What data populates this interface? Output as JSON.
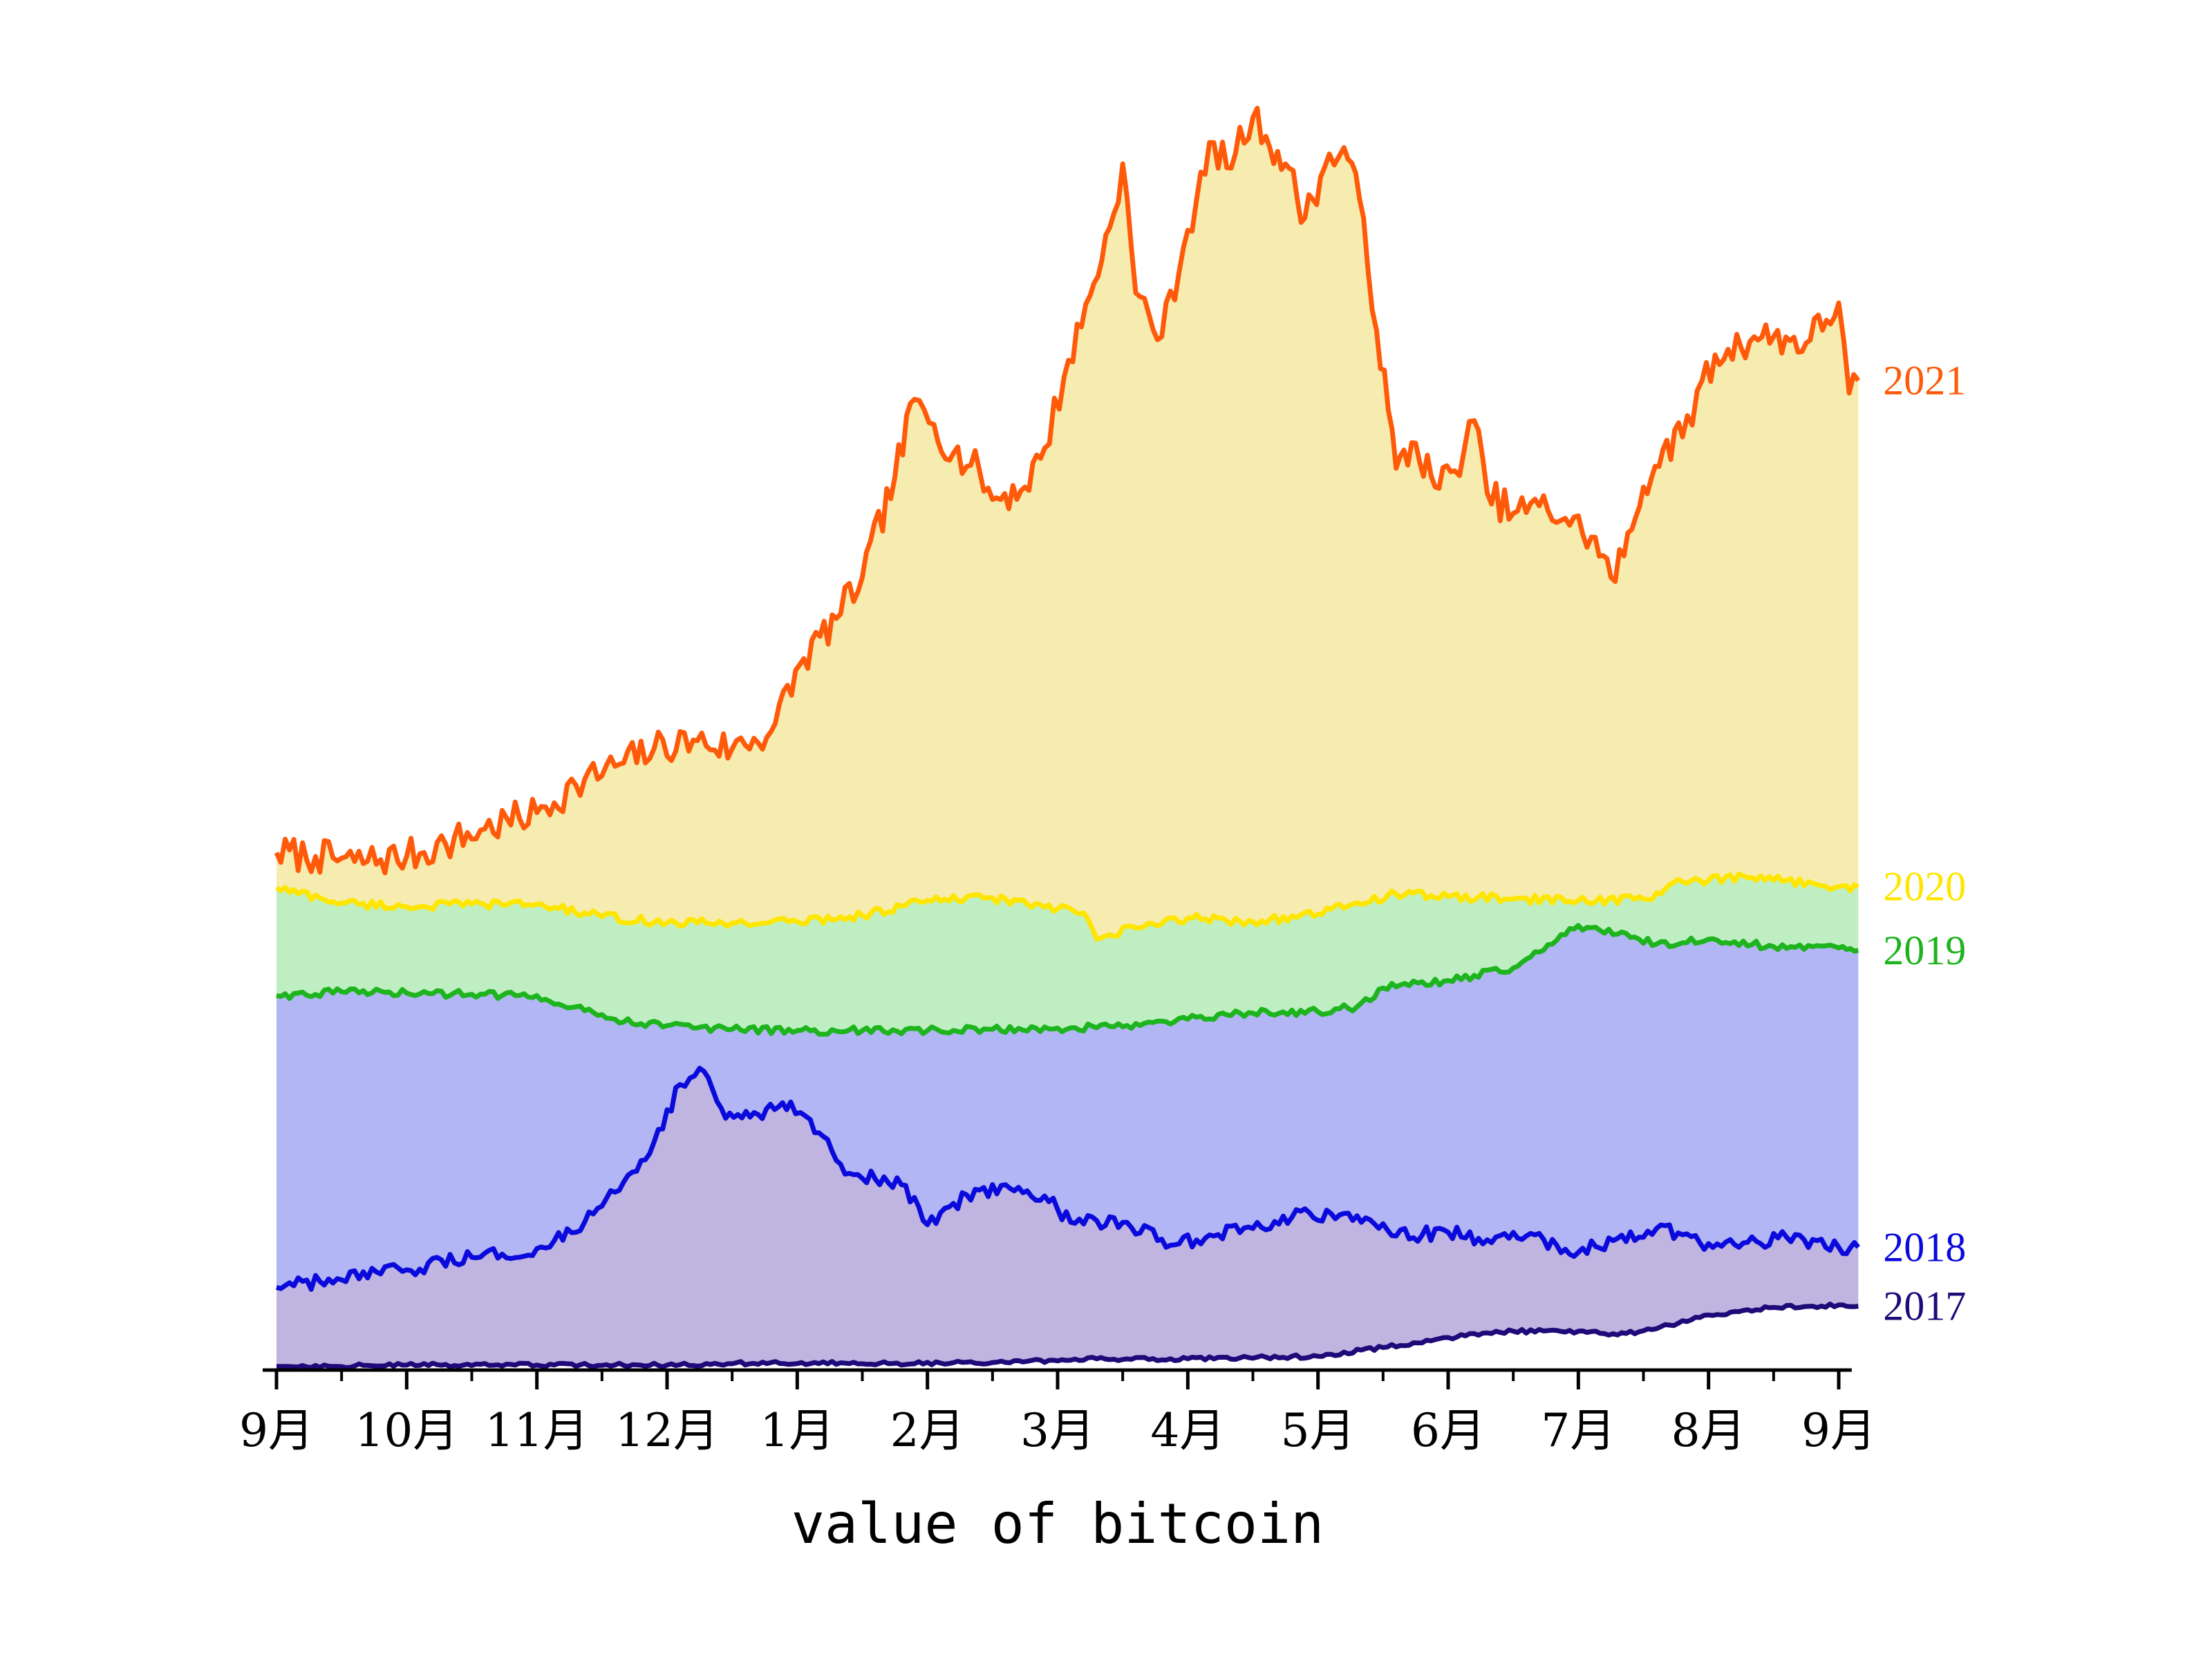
{
  "chart_data": {
    "type": "area",
    "title": "",
    "xlabel": "value of bitcoin",
    "ylabel": "",
    "x_tick_labels": [
      "9月",
      "10月",
      "11月",
      "12月",
      "1月",
      "2月",
      "3月",
      "4月",
      "5月",
      "6月",
      "7月",
      "8月",
      "9月"
    ],
    "x_unit": "month index (0 = 9月 start, 12 = following 9月)",
    "xlim": [
      0,
      12.1
    ],
    "y_scale": "relative (no y axis printed)",
    "ylim": [
      0,
      1
    ],
    "grid": false,
    "legend": "none (series labels at right end of each line)",
    "series": [
      {
        "name": "2021",
        "color": "#ff5a0a",
        "fill": "#f7ecb0",
        "points": [
          [
            0,
            0.413
          ],
          [
            0.3,
            0.41
          ],
          [
            0.6,
            0.406
          ],
          [
            1.0,
            0.41
          ],
          [
            1.3,
            0.42
          ],
          [
            1.6,
            0.432
          ],
          [
            2.0,
            0.445
          ],
          [
            2.3,
            0.467
          ],
          [
            2.6,
            0.482
          ],
          [
            2.9,
            0.496
          ],
          [
            3.2,
            0.503
          ],
          [
            3.5,
            0.496
          ],
          [
            3.8,
            0.51
          ],
          [
            4.05,
            0.568
          ],
          [
            4.3,
            0.6
          ],
          [
            4.5,
            0.633
          ],
          [
            4.75,
            0.713
          ],
          [
            4.9,
            0.775
          ],
          [
            5.05,
            0.755
          ],
          [
            5.2,
            0.732
          ],
          [
            5.4,
            0.718
          ],
          [
            5.5,
            0.695
          ],
          [
            5.75,
            0.705
          ],
          [
            5.9,
            0.736
          ],
          [
            6.05,
            0.793
          ],
          [
            6.25,
            0.858
          ],
          [
            6.4,
            0.912
          ],
          [
            6.5,
            0.963
          ],
          [
            6.6,
            0.86
          ],
          [
            6.8,
            0.825
          ],
          [
            7.0,
            0.91
          ],
          [
            7.2,
            0.98
          ],
          [
            7.3,
            0.96
          ],
          [
            7.5,
            1.0
          ],
          [
            7.6,
            0.985
          ],
          [
            7.75,
            0.963
          ],
          [
            7.9,
            0.92
          ],
          [
            8.05,
            0.96
          ],
          [
            8.2,
            0.976
          ],
          [
            8.35,
            0.92
          ],
          [
            8.45,
            0.83
          ],
          [
            8.6,
            0.72
          ],
          [
            8.75,
            0.74
          ],
          [
            8.9,
            0.705
          ],
          [
            9.05,
            0.718
          ],
          [
            9.2,
            0.758
          ],
          [
            9.3,
            0.7
          ],
          [
            9.5,
            0.684
          ],
          [
            9.7,
            0.69
          ],
          [
            9.9,
            0.68
          ],
          [
            10.1,
            0.665
          ],
          [
            10.25,
            0.633
          ],
          [
            10.35,
            0.65
          ],
          [
            10.5,
            0.705
          ],
          [
            10.65,
            0.735
          ],
          [
            10.8,
            0.745
          ],
          [
            10.95,
            0.79
          ],
          [
            11.15,
            0.815
          ],
          [
            11.35,
            0.825
          ],
          [
            11.5,
            0.825
          ],
          [
            11.75,
            0.82
          ],
          [
            12.0,
            0.852
          ],
          [
            12.08,
            0.78
          ],
          [
            12.15,
            0.79
          ]
        ]
      },
      {
        "name": "2020",
        "color": "#ffe600",
        "fill": "#bfeec3",
        "points": [
          [
            0,
            0.385
          ],
          [
            0.5,
            0.373
          ],
          [
            1.0,
            0.37
          ],
          [
            1.5,
            0.372
          ],
          [
            2.0,
            0.372
          ],
          [
            2.5,
            0.362
          ],
          [
            3.0,
            0.357
          ],
          [
            3.5,
            0.357
          ],
          [
            4.0,
            0.358
          ],
          [
            4.5,
            0.363
          ],
          [
            5.0,
            0.375
          ],
          [
            5.5,
            0.377
          ],
          [
            6.0,
            0.368
          ],
          [
            6.2,
            0.365
          ],
          [
            6.3,
            0.344
          ],
          [
            6.6,
            0.353
          ],
          [
            7.0,
            0.361
          ],
          [
            7.5,
            0.358
          ],
          [
            8.0,
            0.364
          ],
          [
            8.3,
            0.373
          ],
          [
            8.6,
            0.38
          ],
          [
            9.0,
            0.378
          ],
          [
            9.5,
            0.376
          ],
          [
            10.0,
            0.375
          ],
          [
            10.5,
            0.376
          ],
          [
            10.8,
            0.39
          ],
          [
            11.0,
            0.391
          ],
          [
            11.3,
            0.393
          ],
          [
            11.6,
            0.391
          ],
          [
            12.0,
            0.386
          ],
          [
            12.15,
            0.386
          ]
        ]
      },
      {
        "name": "2019",
        "color": "#1eb41e",
        "fill": "#b3b6f4",
        "points": [
          [
            0,
            0.299
          ],
          [
            0.5,
            0.302
          ],
          [
            1.0,
            0.301
          ],
          [
            1.5,
            0.3
          ],
          [
            2.0,
            0.299
          ],
          [
            2.3,
            0.29
          ],
          [
            2.6,
            0.28
          ],
          [
            3.0,
            0.275
          ],
          [
            3.5,
            0.272
          ],
          [
            4.0,
            0.271
          ],
          [
            4.5,
            0.271
          ],
          [
            5.0,
            0.271
          ],
          [
            5.5,
            0.272
          ],
          [
            6.0,
            0.273
          ],
          [
            6.5,
            0.274
          ],
          [
            7.0,
            0.28
          ],
          [
            7.5,
            0.285
          ],
          [
            8.0,
            0.286
          ],
          [
            8.3,
            0.29
          ],
          [
            8.5,
            0.305
          ],
          [
            9.0,
            0.311
          ],
          [
            9.5,
            0.321
          ],
          [
            9.8,
            0.34
          ],
          [
            10.0,
            0.355
          ],
          [
            10.3,
            0.348
          ],
          [
            10.6,
            0.34
          ],
          [
            11.0,
            0.344
          ],
          [
            11.5,
            0.338
          ],
          [
            12.0,
            0.337
          ],
          [
            12.15,
            0.335
          ]
        ]
      },
      {
        "name": "2018",
        "color": "#0a0adc",
        "fill": "#c0b4e0",
        "points": [
          [
            0,
            0.066
          ],
          [
            0.5,
            0.072
          ],
          [
            1.0,
            0.08
          ],
          [
            1.5,
            0.09
          ],
          [
            2.0,
            0.097
          ],
          [
            2.3,
            0.11
          ],
          [
            2.6,
            0.142
          ],
          [
            2.9,
            0.182
          ],
          [
            3.1,
            0.228
          ],
          [
            3.25,
            0.241
          ],
          [
            3.45,
            0.201
          ],
          [
            3.7,
            0.204
          ],
          [
            3.95,
            0.214
          ],
          [
            4.1,
            0.2
          ],
          [
            4.4,
            0.157
          ],
          [
            4.8,
            0.148
          ],
          [
            5.0,
            0.116
          ],
          [
            5.3,
            0.14
          ],
          [
            5.6,
            0.148
          ],
          [
            5.9,
            0.139
          ],
          [
            6.1,
            0.118
          ],
          [
            6.5,
            0.118
          ],
          [
            6.9,
            0.1
          ],
          [
            7.2,
            0.107
          ],
          [
            7.5,
            0.113
          ],
          [
            7.8,
            0.122
          ],
          [
            8.1,
            0.125
          ],
          [
            8.4,
            0.12
          ],
          [
            8.6,
            0.107
          ],
          [
            9.0,
            0.11
          ],
          [
            9.3,
            0.104
          ],
          [
            9.6,
            0.107
          ],
          [
            10.0,
            0.094
          ],
          [
            10.3,
            0.105
          ],
          [
            10.6,
            0.113
          ],
          [
            10.8,
            0.108
          ],
          [
            11.0,
            0.101
          ],
          [
            11.3,
            0.102
          ],
          [
            11.6,
            0.106
          ],
          [
            12.0,
            0.098
          ],
          [
            12.15,
            0.098
          ]
        ]
      },
      {
        "name": "2017",
        "color": "#1e0a78",
        "fill": "#ffffff",
        "points": [
          [
            0,
            0.003
          ],
          [
            1.0,
            0.004
          ],
          [
            2.0,
            0.004
          ],
          [
            3.0,
            0.004
          ],
          [
            3.8,
            0.006
          ],
          [
            4.5,
            0.005
          ],
          [
            5.5,
            0.006
          ],
          [
            6.3,
            0.009
          ],
          [
            7.0,
            0.009
          ],
          [
            8.0,
            0.011
          ],
          [
            8.5,
            0.018
          ],
          [
            9.0,
            0.026
          ],
          [
            9.5,
            0.031
          ],
          [
            10.0,
            0.031
          ],
          [
            10.3,
            0.028
          ],
          [
            10.6,
            0.033
          ],
          [
            11.0,
            0.044
          ],
          [
            11.5,
            0.05
          ],
          [
            11.8,
            0.051
          ],
          [
            12.0,
            0.052
          ],
          [
            12.15,
            0.051
          ]
        ]
      }
    ]
  }
}
